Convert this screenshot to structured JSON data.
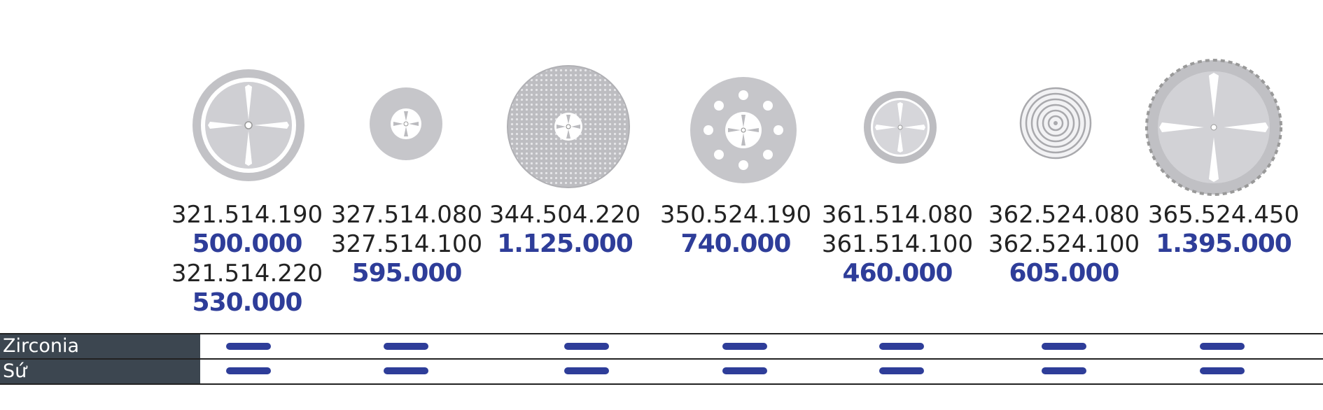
{
  "products": [
    {
      "icon": "disc-4-slot-ring-icon",
      "rows": [
        {
          "code": "321.514.190",
          "price": "500.000"
        },
        {
          "code": "321.514.220",
          "price": "530.000"
        }
      ]
    },
    {
      "icon": "disc-small-perforated-icon",
      "rows": [
        {
          "code": "327.514.080"
        },
        {
          "code": "327.514.100",
          "price": "595.000"
        }
      ]
    },
    {
      "icon": "disc-mesh-large-icon",
      "rows": [
        {
          "code": "344.504.220",
          "price": "1.125.000"
        }
      ]
    },
    {
      "icon": "disc-holes-icon",
      "rows": [
        {
          "code": "350.524.190",
          "price": "740.000"
        }
      ]
    },
    {
      "icon": "disc-ring-small-icon",
      "rows": [
        {
          "code": "361.514.080"
        },
        {
          "code": "361.514.100",
          "price": "460.000"
        }
      ]
    },
    {
      "icon": "disc-concentric-icon",
      "rows": [
        {
          "code": "362.524.080"
        },
        {
          "code": "362.524.100",
          "price": "605.000"
        }
      ]
    },
    {
      "icon": "disc-serrated-large-icon",
      "rows": [
        {
          "code": "365.524.450",
          "price": "1.395.000"
        }
      ]
    }
  ],
  "materials": [
    {
      "label": "Zirconia",
      "applicable": [
        true,
        true,
        true,
        true,
        true,
        true,
        true
      ]
    },
    {
      "label": "Sứ",
      "applicable": [
        true,
        true,
        true,
        true,
        true,
        true,
        true
      ]
    }
  ],
  "colors": {
    "price": "#2e3d99",
    "mark": "#2e3d99",
    "label_bg": "#3c4650",
    "disc": "#b4b4b8"
  }
}
